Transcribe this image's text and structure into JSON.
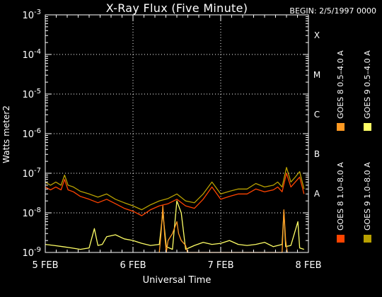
{
  "header": {
    "title": "X-Ray Flux (Five Minute)",
    "begin": "BEGIN: 2/5/1997 0000"
  },
  "colors": {
    "goes8_long": "#ff4400",
    "goes8_short": "#ff9922",
    "goes9_long": "#b8a000",
    "goes9_short": "#ffff66",
    "grid": "#ffffff",
    "axes": "#ffffff"
  },
  "chart_data": {
    "type": "line",
    "title": "X-Ray Flux (Five Minute)",
    "xlabel": "Universal Time",
    "ylabel": "Watts meter2",
    "yscale": "log",
    "ylim": [
      1e-09,
      0.001
    ],
    "xlim": [
      0,
      3
    ],
    "x_unit": "days since 5 FEB 1997 0000 UT",
    "x_ticks": [
      "5 FEB",
      "6 FEB",
      "7 FEB",
      "8 FEB"
    ],
    "y_ticks": [
      "10^-9",
      "10^-8",
      "10^-7",
      "10^-6",
      "10^-5",
      "10^-4",
      "10^-3"
    ],
    "flare_classes": [
      {
        "label": "A",
        "y": 1e-08
      },
      {
        "label": "B",
        "y": 1e-07
      },
      {
        "label": "C",
        "y": 1e-06
      },
      {
        "label": "M",
        "y": 1e-05
      },
      {
        "label": "X",
        "y": 0.0001
      }
    ],
    "grid": true,
    "legend": [
      {
        "name": "GOES 8 1.0–8.0 A",
        "color_key": "goes8_long"
      },
      {
        "name": "GOES 8 0.5–4.0 A",
        "color_key": "goes8_short"
      },
      {
        "name": "GOES 9 1.0–8.0 A",
        "color_key": "goes9_long"
      },
      {
        "name": "GOES 9 0.5–4.0 A",
        "color_key": "goes9_short"
      }
    ],
    "legend_placement": "right, vertical",
    "series": [
      {
        "name": "GOES 9 1.0–8.0 A",
        "color_key": "goes9_long",
        "x": [
          0,
          0.06,
          0.12,
          0.18,
          0.22,
          0.26,
          0.32,
          0.4,
          0.5,
          0.6,
          0.7,
          0.8,
          0.9,
          1.0,
          1.1,
          1.2,
          1.3,
          1.4,
          1.5,
          1.6,
          1.7,
          1.8,
          1.9,
          2.0,
          2.1,
          2.2,
          2.3,
          2.4,
          2.5,
          2.6,
          2.65,
          2.7,
          2.75,
          2.8,
          2.85,
          2.9,
          2.95
        ],
        "y": [
          6e-08,
          5e-08,
          6e-08,
          5e-08,
          9e-08,
          5e-08,
          4.5e-08,
          3.5e-08,
          3e-08,
          2.5e-08,
          3e-08,
          2.2e-08,
          1.8e-08,
          1.5e-08,
          1.2e-08,
          1.6e-08,
          2e-08,
          2.3e-08,
          3e-08,
          2e-08,
          1.8e-08,
          3e-08,
          6e-08,
          3e-08,
          3.5e-08,
          4e-08,
          4e-08,
          5.5e-08,
          4.5e-08,
          5e-08,
          6e-08,
          4.5e-08,
          1.4e-07,
          6e-08,
          8e-08,
          1.1e-07,
          4e-08
        ]
      },
      {
        "name": "GOES 8 1.0–8.0 A",
        "color_key": "goes8_long",
        "x": [
          0,
          0.06,
          0.12,
          0.18,
          0.22,
          0.26,
          0.32,
          0.4,
          0.5,
          0.6,
          0.7,
          0.8,
          0.9,
          1.0,
          1.1,
          1.2,
          1.3,
          1.4,
          1.5,
          1.6,
          1.7,
          1.8,
          1.9,
          2.0,
          2.1,
          2.2,
          2.3,
          2.4,
          2.5,
          2.6,
          2.65,
          2.7,
          2.75,
          2.8,
          2.85,
          2.9,
          2.95
        ],
        "y": [
          4.5e-08,
          3.8e-08,
          4.5e-08,
          3.8e-08,
          7e-08,
          3.8e-08,
          3.4e-08,
          2.6e-08,
          2.2e-08,
          1.8e-08,
          2.2e-08,
          1.7e-08,
          1.3e-08,
          1.1e-08,
          8.5e-09,
          1.2e-08,
          1.5e-08,
          1.7e-08,
          2.2e-08,
          1.5e-08,
          1.3e-08,
          2.2e-08,
          4.5e-08,
          2.2e-08,
          2.6e-08,
          3e-08,
          3e-08,
          4e-08,
          3.4e-08,
          3.8e-08,
          4.5e-08,
          3.4e-08,
          1e-07,
          4.5e-08,
          6e-08,
          8e-08,
          3e-08
        ]
      },
      {
        "name": "GOES 9 0.5–4.0 A",
        "color_key": "goes9_short",
        "x": [
          0,
          0.1,
          0.2,
          0.3,
          0.4,
          0.5,
          0.56,
          0.6,
          0.65,
          0.7,
          0.8,
          0.9,
          1.0,
          1.1,
          1.2,
          1.3,
          1.34,
          1.38,
          1.45,
          1.5,
          1.55,
          1.6,
          1.7,
          1.8,
          1.9,
          2.0,
          2.1,
          2.2,
          2.3,
          2.4,
          2.5,
          2.6,
          2.7,
          2.72,
          2.74,
          2.8,
          2.88,
          2.9,
          2.95
        ],
        "y": [
          1.6e-09,
          1.5e-09,
          1.4e-09,
          1.3e-09,
          1.2e-09,
          1.3e-09,
          4e-09,
          1.5e-09,
          1.6e-09,
          2.5e-09,
          2.8e-09,
          2.2e-09,
          2e-09,
          1.7e-09,
          1.5e-09,
          1.6e-09,
          1e-08,
          1.4e-09,
          1.2e-09,
          2e-08,
          1e-08,
          1.2e-09,
          1.5e-09,
          1.8e-09,
          1.6e-09,
          1.7e-09,
          2e-09,
          1.6e-09,
          1.5e-09,
          1.6e-09,
          1.8e-09,
          1.4e-09,
          1.6e-09,
          1.1e-08,
          1.4e-09,
          1.5e-09,
          6e-09,
          1.3e-09,
          1.2e-09
        ]
      },
      {
        "name": "GOES 8 0.5–4.0 A",
        "color_key": "goes8_short",
        "x": [
          1.3,
          1.32,
          1.34,
          1.36,
          1.38,
          1.4,
          1.45,
          1.5,
          1.52,
          1.55,
          1.6,
          1.62,
          2.7,
          2.72,
          2.74,
          2.76
        ],
        "y": [
          1e-09,
          3e-09,
          1.5e-08,
          3e-09,
          1e-09,
          2e-09,
          3e-09,
          6e-09,
          3e-09,
          2e-09,
          1.5e-09,
          1e-09,
          1e-09,
          1.2e-08,
          2e-09,
          1e-09
        ]
      }
    ]
  }
}
